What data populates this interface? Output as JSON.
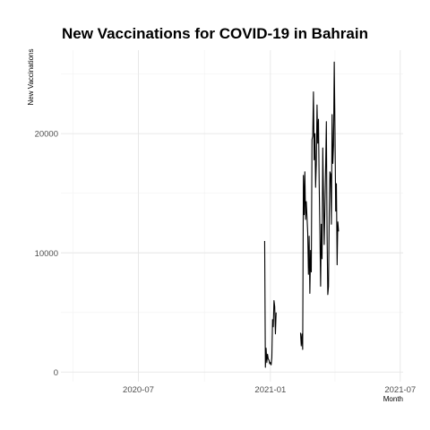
{
  "chart_data": {
    "type": "line",
    "title": "New Vaccinations for COVID-19 in Bahrain",
    "xlabel": "Month",
    "ylabel": "New Vaccinations",
    "x_type": "date",
    "xlim": [
      "2020-03-15",
      "2021-07-05"
    ],
    "ylim": [
      -800,
      27000
    ],
    "x_ticks": [
      {
        "date": "2020-07-01",
        "label": "2020-07"
      },
      {
        "date": "2021-01-01",
        "label": "2021-01"
      },
      {
        "date": "2021-07-01",
        "label": "2021-07"
      }
    ],
    "x_minor_ticks": [
      "2020-04-01",
      "2020-10-01",
      "2021-04-01"
    ],
    "y_ticks": [
      0,
      10000,
      20000
    ],
    "y_minor_ticks": [
      5000,
      15000,
      25000
    ],
    "grid": true,
    "legend": "none",
    "series": [
      {
        "segments": [
          [
            [
              "2020-12-24",
              11000
            ],
            [
              "2020-12-25",
              400
            ],
            [
              "2020-12-26",
              2000
            ],
            [
              "2020-12-27",
              800
            ],
            [
              "2020-12-28",
              1500
            ],
            [
              "2020-12-29",
              1100
            ],
            [
              "2020-12-30",
              1000
            ],
            [
              "2020-12-31",
              700
            ],
            [
              "2021-01-01",
              800
            ],
            [
              "2021-01-02",
              600
            ],
            [
              "2021-01-03",
              1200
            ],
            [
              "2021-01-04",
              4400
            ],
            [
              "2021-01-05",
              3800
            ],
            [
              "2021-01-06",
              6000
            ],
            [
              "2021-01-07",
              5500
            ],
            [
              "2021-01-08",
              3200
            ],
            [
              "2021-01-09",
              5000
            ]
          ],
          [
            [
              "2021-02-12",
              3300
            ],
            [
              "2021-02-13",
              2200
            ],
            [
              "2021-02-14",
              3200
            ],
            [
              "2021-02-15",
              1900
            ],
            [
              "2021-02-16",
              16500
            ],
            [
              "2021-02-17",
              13200
            ],
            [
              "2021-02-18",
              16800
            ],
            [
              "2021-02-19",
              12800
            ],
            [
              "2021-02-20",
              14300
            ],
            [
              "2021-02-21",
              13000
            ],
            [
              "2021-02-22",
              11700
            ],
            [
              "2021-02-23",
              8200
            ],
            [
              "2021-02-24",
              11400
            ],
            [
              "2021-02-25",
              6600
            ],
            [
              "2021-02-26",
              10200
            ],
            [
              "2021-02-27",
              8400
            ],
            [
              "2021-02-28",
              19500
            ],
            [
              "2021-03-01",
              19800
            ],
            [
              "2021-03-02",
              23500
            ],
            [
              "2021-03-03",
              17800
            ],
            [
              "2021-03-04",
              20000
            ],
            [
              "2021-03-05",
              15500
            ],
            [
              "2021-03-06",
              17500
            ],
            [
              "2021-03-07",
              22400
            ],
            [
              "2021-03-08",
              19200
            ],
            [
              "2021-03-09",
              21200
            ],
            [
              "2021-03-10",
              15800
            ],
            [
              "2021-03-11",
              11800
            ],
            [
              "2021-03-12",
              7200
            ],
            [
              "2021-03-13",
              12400
            ],
            [
              "2021-03-14",
              9500
            ],
            [
              "2021-03-15",
              18800
            ],
            [
              "2021-03-16",
              14800
            ],
            [
              "2021-03-17",
              10700
            ],
            [
              "2021-03-18",
              13800
            ],
            [
              "2021-03-19",
              17200
            ],
            [
              "2021-03-20",
              21000
            ],
            [
              "2021-03-21",
              11500
            ],
            [
              "2021-03-22",
              6500
            ],
            [
              "2021-03-23",
              7200
            ],
            [
              "2021-03-24",
              13400
            ],
            [
              "2021-03-25",
              16800
            ],
            [
              "2021-03-26",
              16600
            ],
            [
              "2021-03-27",
              12400
            ],
            [
              "2021-03-28",
              21600
            ],
            [
              "2021-03-29",
              17500
            ],
            [
              "2021-03-30",
              19000
            ],
            [
              "2021-03-31",
              26000
            ],
            [
              "2021-04-01",
              20500
            ],
            [
              "2021-04-02",
              13500
            ],
            [
              "2021-04-03",
              15800
            ],
            [
              "2021-04-04",
              9000
            ],
            [
              "2021-04-05",
              12600
            ],
            [
              "2021-04-06",
              11800
            ]
          ]
        ]
      }
    ]
  }
}
